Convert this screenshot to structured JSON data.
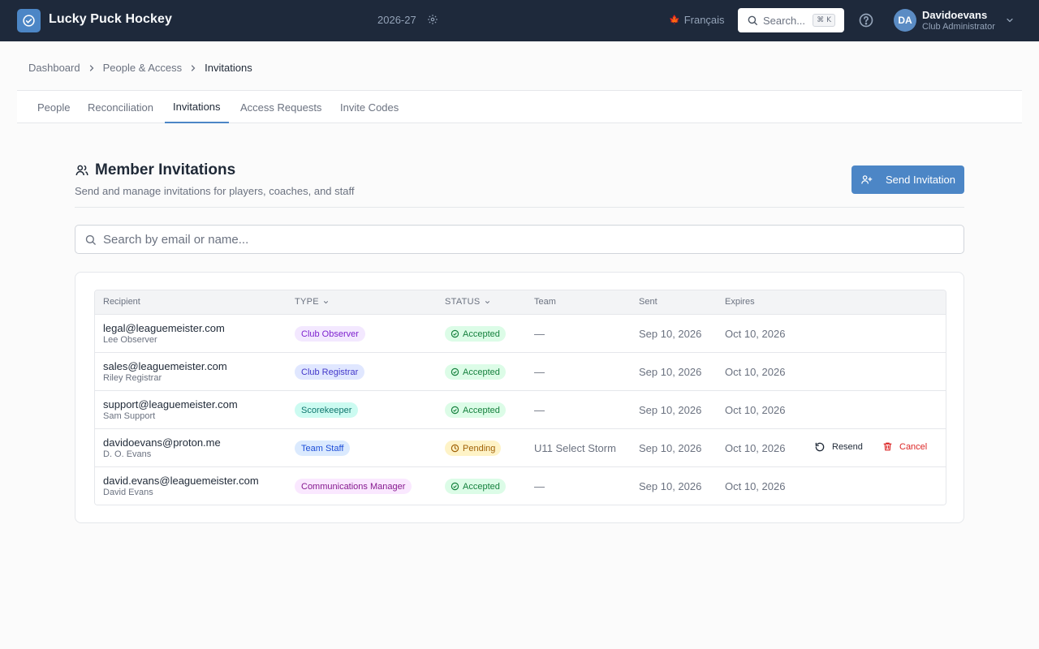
{
  "app": {
    "title": "Lucky Puck Hockey",
    "season": "2026-27",
    "language": "Français",
    "search_label": "Search...",
    "search_shortcut": "⌘ K",
    "user": {
      "initials": "DA",
      "name": "Davidoevans",
      "role": "Club Administrator"
    }
  },
  "breadcrumb": [
    "Dashboard",
    "People & Access",
    "Invitations"
  ],
  "tabs": [
    "People",
    "Reconciliation",
    "Invitations",
    "Access Requests",
    "Invite Codes"
  ],
  "active_tab": "Invitations",
  "section": {
    "title": "Member Invitations",
    "subtitle": "Send and manage invitations for players, coaches, and staff",
    "send_button": "Send Invitation"
  },
  "search": {
    "placeholder": "Search by email or name..."
  },
  "table": {
    "columns": {
      "recipient": "Recipient",
      "type": "TYPE",
      "status": "STATUS",
      "team": "Team",
      "sent": "Sent",
      "expires": "Expires"
    },
    "rows": [
      {
        "email": "legal@leaguemeister.com",
        "name": "Lee Observer",
        "type": "Club Observer",
        "status": "Accepted",
        "team": "—",
        "sent": "Sep 10, 2026",
        "expires": "Oct 10, 2026"
      },
      {
        "email": "sales@leaguemeister.com",
        "name": "Riley Registrar",
        "type": "Club Registrar",
        "status": "Accepted",
        "team": "—",
        "sent": "Sep 10, 2026",
        "expires": "Oct 10, 2026"
      },
      {
        "email": "support@leaguemeister.com",
        "name": "Sam Support",
        "type": "Scorekeeper",
        "status": "Accepted",
        "team": "—",
        "sent": "Sep 10, 2026",
        "expires": "Oct 10, 2026"
      },
      {
        "email": "davidoevans@proton.me",
        "name": "D. O. Evans",
        "type": "Team Staff",
        "status": "Pending",
        "team": "U11 Select Storm",
        "sent": "Sep 10, 2026",
        "expires": "Oct 10, 2026",
        "actions": {
          "resend": "Resend",
          "cancel": "Cancel"
        }
      },
      {
        "email": "david.evans@leaguemeister.com",
        "name": "David Evans",
        "type": "Communications Manager",
        "status": "Accepted",
        "team": "—",
        "sent": "Sep 10, 2026",
        "expires": "Oct 10, 2026"
      }
    ]
  },
  "badge_colors": {
    "Club Observer": {
      "bg": "#f3e8ff",
      "fg": "#7e22ce"
    },
    "Club Registrar": {
      "bg": "#e0e7ff",
      "fg": "#4338ca"
    },
    "Scorekeeper": {
      "bg": "#ccfbf1",
      "fg": "#0f766e"
    },
    "Team Staff": {
      "bg": "#dbeafe",
      "fg": "#1d4ed8"
    },
    "Communications Manager": {
      "bg": "#fae8ff",
      "fg": "#86198f"
    }
  },
  "colors": {
    "topbar": "#1e293b",
    "accent": "#4c86c6",
    "danger": "#dc2626"
  }
}
